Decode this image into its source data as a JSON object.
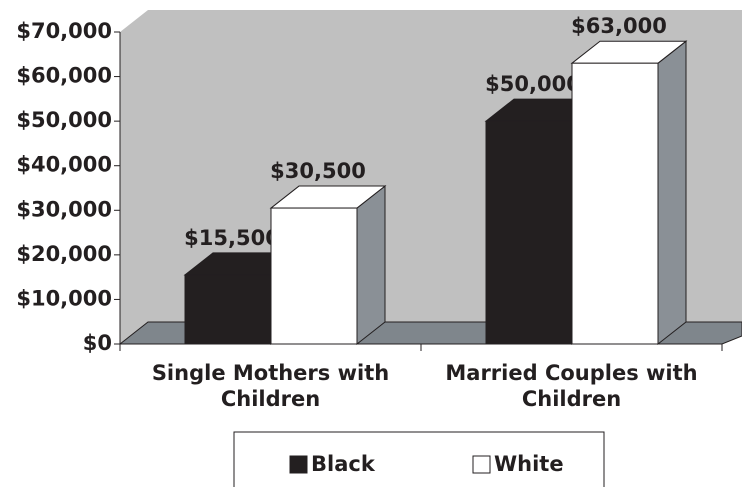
{
  "chart_data": {
    "type": "bar",
    "categories": [
      "Single Mothers with Children",
      "Married Couples with Children"
    ],
    "series": [
      {
        "name": "Black",
        "color": "#231f20",
        "values": [
          15500,
          50000
        ],
        "value_labels": [
          "$15,500",
          "$50,000"
        ]
      },
      {
        "name": "White",
        "color": "#ffffff",
        "values": [
          30500,
          63000
        ],
        "value_labels": [
          "$30,500",
          "$63,000"
        ]
      }
    ],
    "ylim": [
      0,
      70000
    ],
    "yticks": [
      {
        "value": 0,
        "label": "$0"
      },
      {
        "value": 10000,
        "label": "$10,000"
      },
      {
        "value": 20000,
        "label": "$20,000"
      },
      {
        "value": 30000,
        "label": "$30,000"
      },
      {
        "value": 40000,
        "label": "$40,000"
      },
      {
        "value": 50000,
        "label": "$50,000"
      },
      {
        "value": 60000,
        "label": "$60,000"
      },
      {
        "value": 70000,
        "label": "$70,000"
      }
    ],
    "legend": "bottom"
  }
}
